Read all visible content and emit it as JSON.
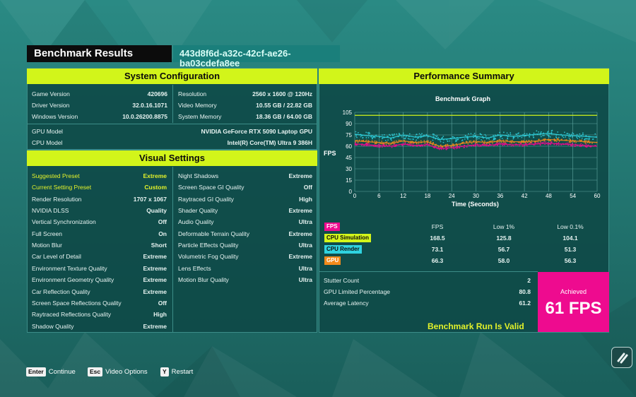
{
  "header": {
    "title": "Benchmark Results",
    "run_id": "443d8f6d-a32c-42cf-ae26-ba03cdefa8ee"
  },
  "system_configuration": {
    "heading": "System Configuration",
    "left": [
      {
        "label": "Game Version",
        "value": "420696"
      },
      {
        "label": "Driver Version",
        "value": "32.0.16.1071"
      },
      {
        "label": "Windows Version",
        "value": "10.0.26200.8875"
      }
    ],
    "right": [
      {
        "label": "Resolution",
        "value": "2560 x 1600 @ 120Hz"
      },
      {
        "label": "Video Memory",
        "value": "10.55 GB / 22.82 GB"
      },
      {
        "label": "System Memory",
        "value": "18.36 GB / 64.00 GB"
      }
    ],
    "hardware": [
      {
        "label": "GPU Model",
        "value": "NVIDIA GeForce RTX 5090 Laptop GPU"
      },
      {
        "label": "CPU Model",
        "value": "Intel(R) Core(TM) Ultra 9 386H"
      }
    ]
  },
  "visual_settings": {
    "heading": "Visual Settings",
    "left": [
      {
        "label": "Suggested Preset",
        "value": "Extreme",
        "highlight": true
      },
      {
        "label": "Current Setting Preset",
        "value": "Custom",
        "highlight": true
      },
      {
        "label": "Render Resolution",
        "value": "1707 x 1067"
      },
      {
        "label": "NVIDIA DLSS",
        "value": "Quality"
      },
      {
        "label": "Vertical Synchronization",
        "value": "Off"
      },
      {
        "label": "Full Screen",
        "value": "On"
      },
      {
        "label": "Motion Blur",
        "value": "Short"
      },
      {
        "label": "Car Level of Detail",
        "value": "Extreme"
      },
      {
        "label": "Environment Texture Quality",
        "value": "Extreme"
      },
      {
        "label": "Environment Geometry Quality",
        "value": "Extreme"
      },
      {
        "label": "Car Reflection Quality",
        "value": "Extreme"
      },
      {
        "label": "Screen Space Reflections Quality",
        "value": "Off"
      },
      {
        "label": "Raytraced Reflections Quality",
        "value": "High"
      },
      {
        "label": "Shadow Quality",
        "value": "Extreme"
      }
    ],
    "right": [
      {
        "label": "Night Shadows",
        "value": "Extreme"
      },
      {
        "label": "Screen Space GI Quality",
        "value": "Off"
      },
      {
        "label": "Raytraced GI Quality",
        "value": "High"
      },
      {
        "label": "Shader Quality",
        "value": "Extreme"
      },
      {
        "label": "Audio Quality",
        "value": "Ultra"
      },
      {
        "label": "Deformable Terrain Quality",
        "value": "Extreme"
      },
      {
        "label": "Particle Effects Quality",
        "value": "Ultra"
      },
      {
        "label": "Volumetric Fog Quality",
        "value": "Extreme"
      },
      {
        "label": "Lens Effects",
        "value": "Ultra"
      },
      {
        "label": "Motion Blur Quality",
        "value": "Ultra"
      }
    ]
  },
  "performance_summary": {
    "heading": "Performance Summary",
    "stat_headers": [
      "FPS",
      "Low 1%",
      "Low 0.1%"
    ],
    "stats": [
      {
        "name": "FPS",
        "color": "#ee0b8f",
        "text_color": "#ffffff",
        "fps": "",
        "low1": "",
        "low01": ""
      },
      {
        "name": "CPU Simulation",
        "color": "#d2f51a",
        "text_color": "#0b0b0b",
        "fps": "168.5",
        "low1": "125.8",
        "low01": "104.1"
      },
      {
        "name": "CPU Render",
        "color": "#2fd3e0",
        "text_color": "#0b0b0b",
        "fps": "73.1",
        "low1": "56.7",
        "low01": "51.3"
      },
      {
        "name": "GPU",
        "color": "#f28a1c",
        "text_color": "#ffffff",
        "fps": "66.3",
        "low1": "58.0",
        "low01": "56.3"
      }
    ],
    "extra": [
      {
        "label": "Stutter Count",
        "value": "2"
      },
      {
        "label": "GPU Limited Percentage",
        "value": "80.8"
      },
      {
        "label": "Average Latency",
        "value": "61.2"
      }
    ],
    "achieved_label": "Achieved",
    "achieved_value": "61 FPS",
    "valid_text": "Benchmark Run Is Valid"
  },
  "chart_data": {
    "type": "scatter",
    "title": "Benchmark Graph",
    "xlabel": "Time (Seconds)",
    "ylabel": "FPS",
    "xlim": [
      0,
      60
    ],
    "ylim": [
      0,
      105
    ],
    "xticks": [
      0,
      6,
      12,
      18,
      24,
      30,
      36,
      42,
      48,
      54,
      60
    ],
    "yticks": [
      0,
      15,
      30,
      45,
      60,
      75,
      90,
      105
    ],
    "grid": true,
    "series": [
      {
        "name": "CPU Render",
        "color": "#2fd3e0",
        "x": [
          0,
          3,
          6,
          9,
          12,
          15,
          18,
          21,
          24,
          27,
          30,
          33,
          36,
          39,
          42,
          45,
          48,
          51,
          54,
          57,
          60
        ],
        "values": [
          76,
          74,
          73,
          71,
          75,
          72,
          74,
          69,
          70,
          72,
          73,
          71,
          75,
          73,
          74,
          76,
          77,
          75,
          74,
          73,
          72
        ]
      },
      {
        "name": "GPU",
        "color": "#f28a1c",
        "x": [
          0,
          3,
          6,
          9,
          12,
          15,
          18,
          21,
          24,
          27,
          30,
          33,
          36,
          39,
          42,
          45,
          48,
          51,
          54,
          57,
          60
        ],
        "values": [
          67,
          66,
          65,
          64,
          67,
          65,
          66,
          60,
          61,
          64,
          66,
          65,
          67,
          66,
          66,
          67,
          69,
          68,
          67,
          66,
          65
        ]
      },
      {
        "name": "FPS",
        "color": "#ee0b8f",
        "x": [
          0,
          3,
          6,
          9,
          12,
          15,
          18,
          21,
          24,
          27,
          30,
          33,
          36,
          39,
          42,
          45,
          48,
          51,
          54,
          57,
          60
        ],
        "values": [
          63,
          62,
          61,
          60,
          63,
          61,
          62,
          57,
          58,
          60,
          62,
          61,
          63,
          62,
          62,
          63,
          64,
          63,
          62,
          61,
          60
        ]
      },
      {
        "name": "CPU Simulation",
        "color": "#d2f51a",
        "x": [
          0,
          60
        ],
        "values": [
          101,
          101
        ]
      }
    ]
  },
  "controls": [
    {
      "key": "Enter",
      "label": "Continue"
    },
    {
      "key": "Esc",
      "label": "Video Options"
    },
    {
      "key": "Y",
      "label": "Restart"
    }
  ],
  "colors": {
    "lime": "#d2f51a",
    "panel": "#0e4846",
    "pink": "#ee0b8f"
  }
}
